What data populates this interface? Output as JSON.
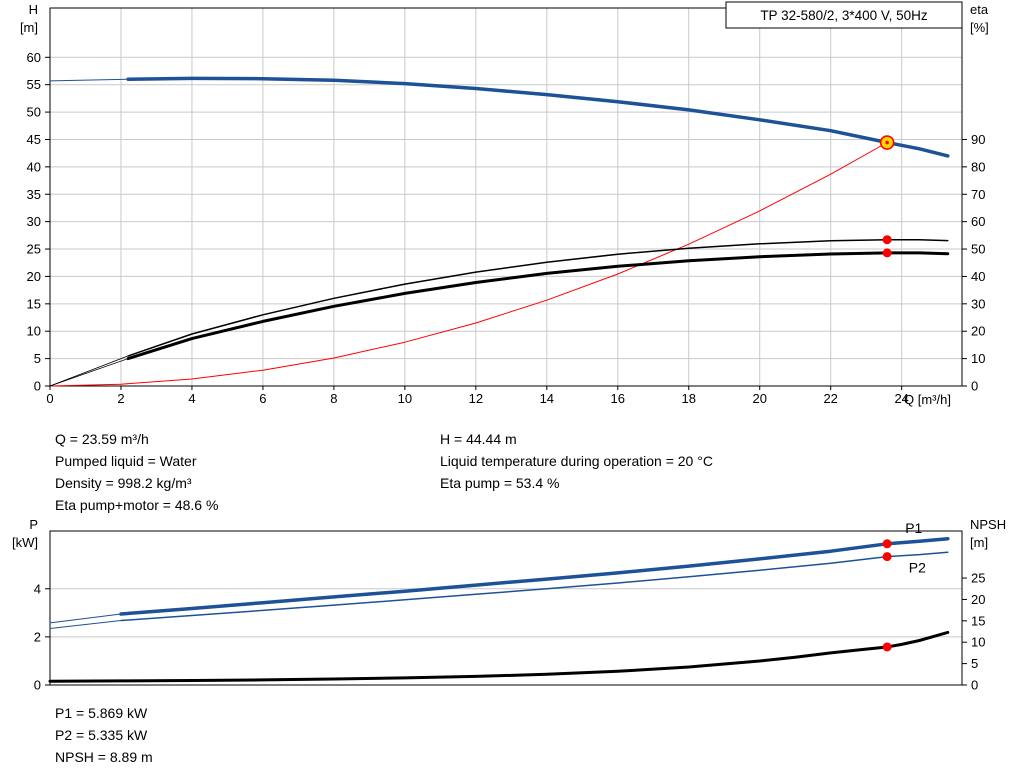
{
  "colors": {
    "blue": "#1d5296",
    "red": "#ff0000",
    "black": "#000000",
    "grid": "#c9c9c9",
    "duty_fill": "#ffd800",
    "duty_stroke": "#ff0000",
    "dot": "#ff0000"
  },
  "info": {
    "left": [
      "Q = 23.59 m³/h",
      "Pumped liquid = Water",
      "Density = 998.2 kg/m³",
      "Eta pump+motor = 48.6 %"
    ],
    "right": [
      "H = 44.44 m",
      "Liquid temperature during operation = 20 °C",
      "Eta pump = 53.4 %"
    ],
    "bottom": [
      "P1 = 5.869 kW",
      "P2 = 5.335 kW",
      "NPSH = 8.89 m"
    ]
  },
  "chart_data": [
    {
      "id": "pump-chart",
      "type": "line",
      "title": "TP 32-580/2, 3*400 V, 50Hz",
      "xlabel": "Q [m³/h]",
      "left_title": [
        "H",
        "[m]"
      ],
      "right_title": [
        "eta",
        "[%]"
      ],
      "xlim": [
        0,
        25.7
      ],
      "xticks": [
        0,
        2,
        4,
        6,
        8,
        10,
        12,
        14,
        16,
        18,
        20,
        22,
        24
      ],
      "show_xtick_labels": true,
      "ylim_left": [
        0,
        69
      ],
      "yticks_left": [
        0,
        5,
        10,
        15,
        20,
        25,
        30,
        35,
        40,
        45,
        50,
        55,
        60
      ],
      "ylim_right": [
        0,
        138
      ],
      "yticks_right": [
        0,
        10,
        20,
        30,
        40,
        50,
        60,
        70,
        80,
        90
      ],
      "grid": {
        "vertical": true,
        "horizontal": true
      },
      "series": [
        {
          "name": "pump-curve-lead",
          "axis": "left",
          "color": "#1d5296",
          "width": 1,
          "points": [
            [
              0,
              55.7
            ],
            [
              2.2,
              56.0
            ]
          ]
        },
        {
          "name": "pump-curve",
          "axis": "left",
          "color": "#1d5296",
          "width": 3.5,
          "points": [
            [
              2.2,
              56.0
            ],
            [
              4,
              56.15
            ],
            [
              6,
              56.1
            ],
            [
              8,
              55.8
            ],
            [
              10,
              55.2
            ],
            [
              12,
              54.3
            ],
            [
              14,
              53.2
            ],
            [
              16,
              51.9
            ],
            [
              18,
              50.4
            ],
            [
              20,
              48.6
            ],
            [
              22,
              46.6
            ],
            [
              23.59,
              44.44
            ],
            [
              24.5,
              43.3
            ],
            [
              25.3,
              42.0
            ]
          ]
        },
        {
          "name": "system-curve",
          "axis": "left",
          "color": "#ff0000",
          "width": 1,
          "points": [
            [
              0,
              0
            ],
            [
              2,
              0.32
            ],
            [
              4,
              1.28
            ],
            [
              6,
              2.88
            ],
            [
              8,
              5.11
            ],
            [
              10,
              7.99
            ],
            [
              12,
              11.5
            ],
            [
              14,
              15.66
            ],
            [
              16,
              20.45
            ],
            [
              18,
              25.88
            ],
            [
              20,
              31.96
            ],
            [
              22,
              38.67
            ],
            [
              23.59,
              44.44
            ]
          ]
        },
        {
          "name": "eta-pump-lead",
          "axis": "right",
          "color": "#000000",
          "width": 0.8,
          "points": [
            [
              0,
              0
            ],
            [
              2.2,
              11
            ]
          ]
        },
        {
          "name": "eta-pump-curve",
          "axis": "right",
          "color": "#000000",
          "width": 1.5,
          "points": [
            [
              2.2,
              11
            ],
            [
              4,
              19
            ],
            [
              6,
              26
            ],
            [
              8,
              32
            ],
            [
              10,
              37.2
            ],
            [
              12,
              41.6
            ],
            [
              14,
              45.2
            ],
            [
              16,
              48.1
            ],
            [
              18,
              50.3
            ],
            [
              20,
              51.9
            ],
            [
              22,
              53.0
            ],
            [
              23.59,
              53.4
            ],
            [
              24.5,
              53.4
            ],
            [
              25.3,
              53.1
            ]
          ]
        },
        {
          "name": "eta-pump-motor-lead",
          "axis": "right",
          "color": "#000000",
          "width": 0.8,
          "points": [
            [
              0,
              0
            ],
            [
              2.2,
              10
            ]
          ]
        },
        {
          "name": "eta-pump-motor-curve",
          "axis": "right",
          "color": "#000000",
          "width": 3,
          "points": [
            [
              2.2,
              10
            ],
            [
              4,
              17.3
            ],
            [
              6,
              23.6
            ],
            [
              8,
              29.1
            ],
            [
              10,
              33.8
            ],
            [
              12,
              37.8
            ],
            [
              14,
              41.1
            ],
            [
              16,
              43.7
            ],
            [
              18,
              45.7
            ],
            [
              20,
              47.2
            ],
            [
              22,
              48.2
            ],
            [
              23.59,
              48.6
            ],
            [
              24.5,
              48.6
            ],
            [
              25.3,
              48.3
            ]
          ]
        }
      ],
      "markers": [
        {
          "type": "duty",
          "name": "duty-point-marker",
          "x": 23.59,
          "y": 44.44,
          "axis": "left"
        },
        {
          "type": "dot",
          "name": "eta-pump-point",
          "x": 23.59,
          "y": 53.4,
          "axis": "right"
        },
        {
          "type": "dot",
          "name": "eta-pump-motor-point",
          "x": 23.59,
          "y": 48.6,
          "axis": "right"
        }
      ],
      "labels": []
    },
    {
      "id": "power-npsh-chart",
      "type": "line",
      "title": "",
      "xlabel": "",
      "left_title": [
        "P",
        "[kW]"
      ],
      "right_title": [
        "NPSH",
        "[m]"
      ],
      "xlim": [
        0,
        25.7
      ],
      "xticks": [],
      "show_xtick_labels": false,
      "ylim_left": [
        0,
        6.4
      ],
      "yticks_left": [
        0,
        2,
        4
      ],
      "ylim_right": [
        0,
        36
      ],
      "yticks_right": [
        0,
        5,
        10,
        15,
        20,
        25
      ],
      "grid": {
        "vertical": false,
        "horizontal": true
      },
      "series": [
        {
          "name": "p1-curve-lead",
          "axis": "left",
          "color": "#1d5296",
          "width": 1,
          "points": [
            [
              0,
              2.58
            ],
            [
              2,
              2.95
            ]
          ]
        },
        {
          "name": "p1-curve",
          "axis": "left",
          "color": "#1d5296",
          "width": 3.5,
          "points": [
            [
              2,
              2.95
            ],
            [
              4,
              3.18
            ],
            [
              6,
              3.42
            ],
            [
              8,
              3.66
            ],
            [
              10,
              3.9
            ],
            [
              12,
              4.15
            ],
            [
              14,
              4.4
            ],
            [
              16,
              4.66
            ],
            [
              18,
              4.94
            ],
            [
              20,
              5.24
            ],
            [
              22,
              5.56
            ],
            [
              23.59,
              5.869
            ],
            [
              24.5,
              5.97
            ],
            [
              25.3,
              6.08
            ]
          ]
        },
        {
          "name": "p2-curve-lead",
          "axis": "left",
          "color": "#1d5296",
          "width": 1,
          "points": [
            [
              0,
              2.35
            ],
            [
              2,
              2.68
            ]
          ]
        },
        {
          "name": "p2-curve",
          "axis": "left",
          "color": "#1d5296",
          "width": 1.5,
          "points": [
            [
              2,
              2.68
            ],
            [
              4,
              2.89
            ],
            [
              6,
              3.1
            ],
            [
              8,
              3.32
            ],
            [
              10,
              3.54
            ],
            [
              12,
              3.77
            ],
            [
              14,
              4.0
            ],
            [
              16,
              4.24
            ],
            [
              18,
              4.5
            ],
            [
              20,
              4.77
            ],
            [
              22,
              5.06
            ],
            [
              23.59,
              5.335
            ],
            [
              24.5,
              5.42
            ],
            [
              25.3,
              5.52
            ]
          ]
        },
        {
          "name": "npsh-curve",
          "axis": "right",
          "color": "#000000",
          "width": 3,
          "points": [
            [
              0,
              0.9
            ],
            [
              2,
              0.95
            ],
            [
              4,
              1.05
            ],
            [
              6,
              1.2
            ],
            [
              8,
              1.4
            ],
            [
              10,
              1.65
            ],
            [
              12,
              2.0
            ],
            [
              14,
              2.5
            ],
            [
              16,
              3.2
            ],
            [
              18,
              4.2
            ],
            [
              20,
              5.6
            ],
            [
              21,
              6.5
            ],
            [
              22,
              7.5
            ],
            [
              23,
              8.4
            ],
            [
              23.59,
              8.89
            ],
            [
              24,
              9.5
            ],
            [
              24.5,
              10.4
            ],
            [
              25,
              11.6
            ],
            [
              25.3,
              12.3
            ]
          ]
        }
      ],
      "markers": [
        {
          "type": "dot",
          "name": "p1-point",
          "x": 23.59,
          "y": 5.869,
          "axis": "left"
        },
        {
          "type": "dot",
          "name": "p2-point",
          "x": 23.59,
          "y": 5.335,
          "axis": "left"
        },
        {
          "type": "dot",
          "name": "npsh-point",
          "x": 23.59,
          "y": 8.89,
          "axis": "right"
        }
      ],
      "labels": [
        {
          "text": "P1",
          "x": 24.1,
          "y": 6.32,
          "axis": "left",
          "color": "#1d5296"
        },
        {
          "text": "P2",
          "x": 24.2,
          "y": 4.68,
          "axis": "left",
          "color": "#1d5296"
        }
      ]
    }
  ]
}
